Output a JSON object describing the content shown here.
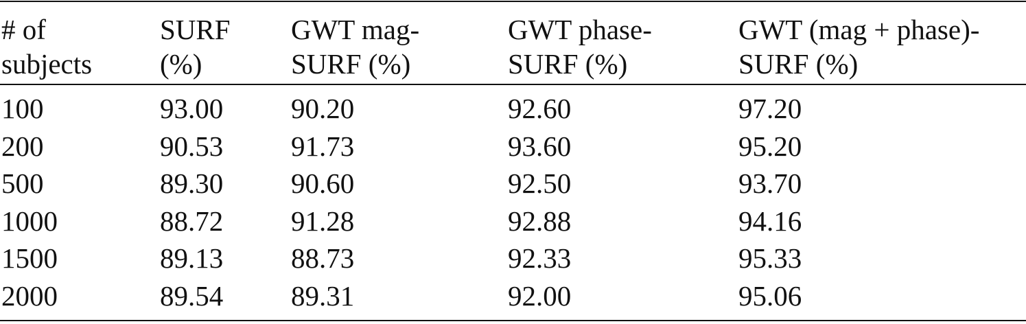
{
  "table": {
    "header": [
      [
        "# of",
        "subjects"
      ],
      [
        "SURF",
        "(%)"
      ],
      [
        "GWT mag-",
        "SURF (%)"
      ],
      [
        "GWT phase-",
        "SURF (%)"
      ],
      [
        "GWT (mag + phase)-",
        "SURF (%)"
      ]
    ],
    "rows": [
      [
        "100",
        "93.00",
        "90.20",
        "92.60",
        "97.20"
      ],
      [
        "200",
        "90.53",
        "91.73",
        "93.60",
        "95.20"
      ],
      [
        "500",
        "89.30",
        "90.60",
        "92.50",
        "93.70"
      ],
      [
        "1000",
        "88.72",
        "91.28",
        "92.88",
        "94.16"
      ],
      [
        "1500",
        "89.13",
        "88.73",
        "92.33",
        "95.33"
      ],
      [
        "2000",
        "89.54",
        "89.31",
        "92.00",
        "95.06"
      ]
    ]
  }
}
